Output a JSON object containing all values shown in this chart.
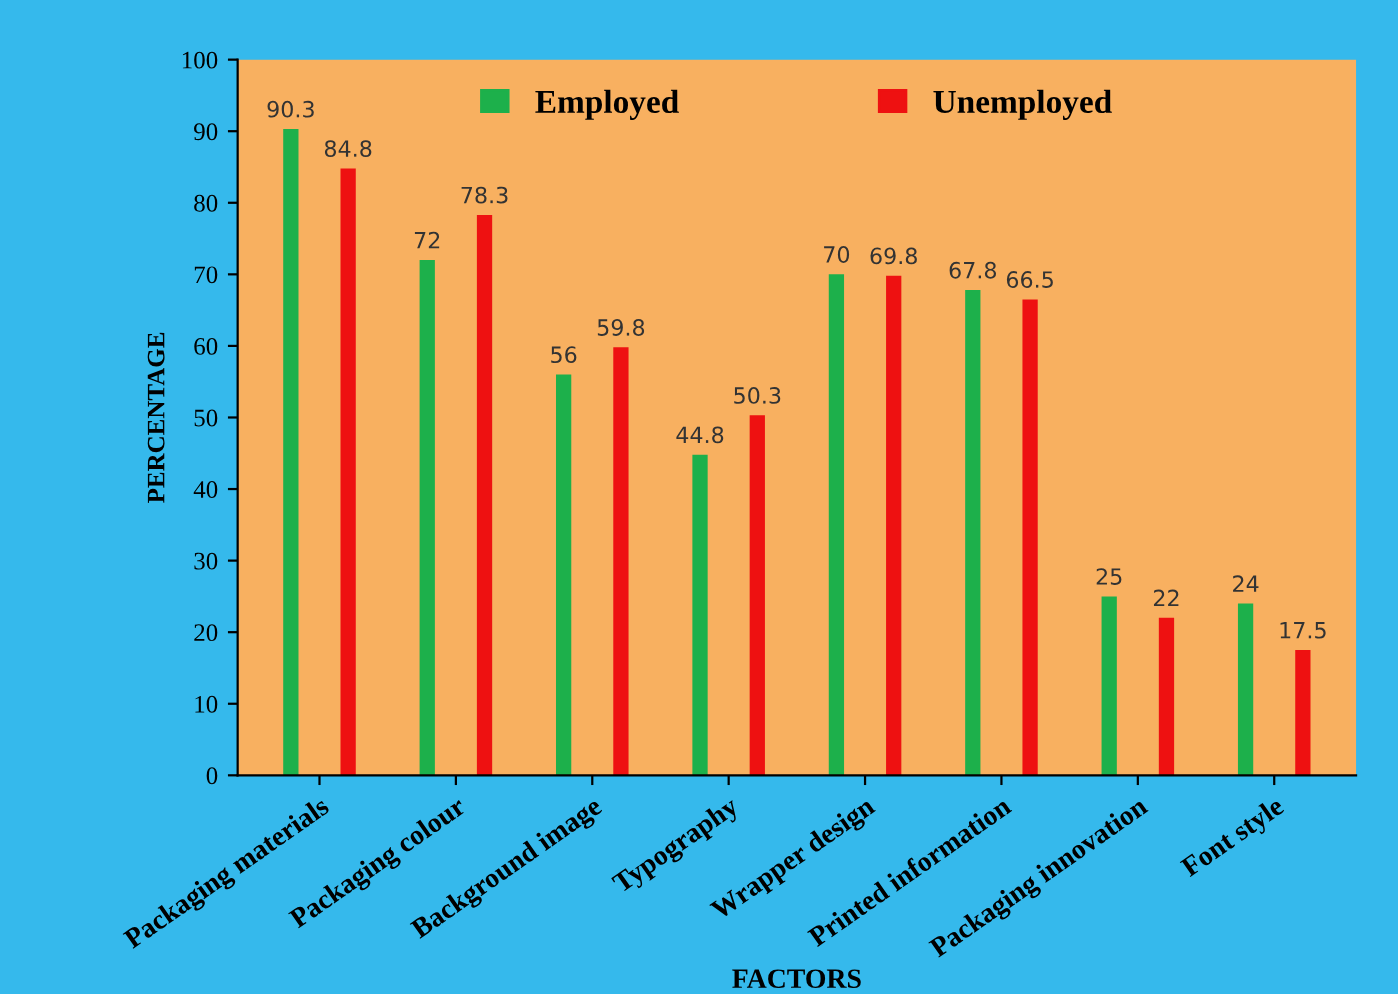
{
  "chart_data": {
    "type": "bar",
    "categories": [
      "Packaging materials",
      "Packaging colour",
      "Background image",
      "Typography",
      "Wrapper design",
      "Printed information",
      "Packaging innovation",
      "Font style"
    ],
    "series": [
      {
        "name": "Employed",
        "color": "#1db04b",
        "values": [
          90.3,
          72,
          56,
          44.8,
          70,
          67.8,
          25,
          24
        ]
      },
      {
        "name": "Unemployed",
        "color": "#ee1111",
        "values": [
          84.8,
          78.3,
          59.8,
          50.3,
          69.8,
          66.5,
          22,
          17.5
        ]
      }
    ],
    "xlabel": "FACTORS",
    "ylabel": "PERCENTAGE",
    "ylim": [
      0,
      100
    ],
    "yticks": [
      0,
      10,
      20,
      30,
      40,
      50,
      60,
      70,
      80,
      90,
      100
    ],
    "data_labels": true,
    "grid": false,
    "legend": "top"
  }
}
